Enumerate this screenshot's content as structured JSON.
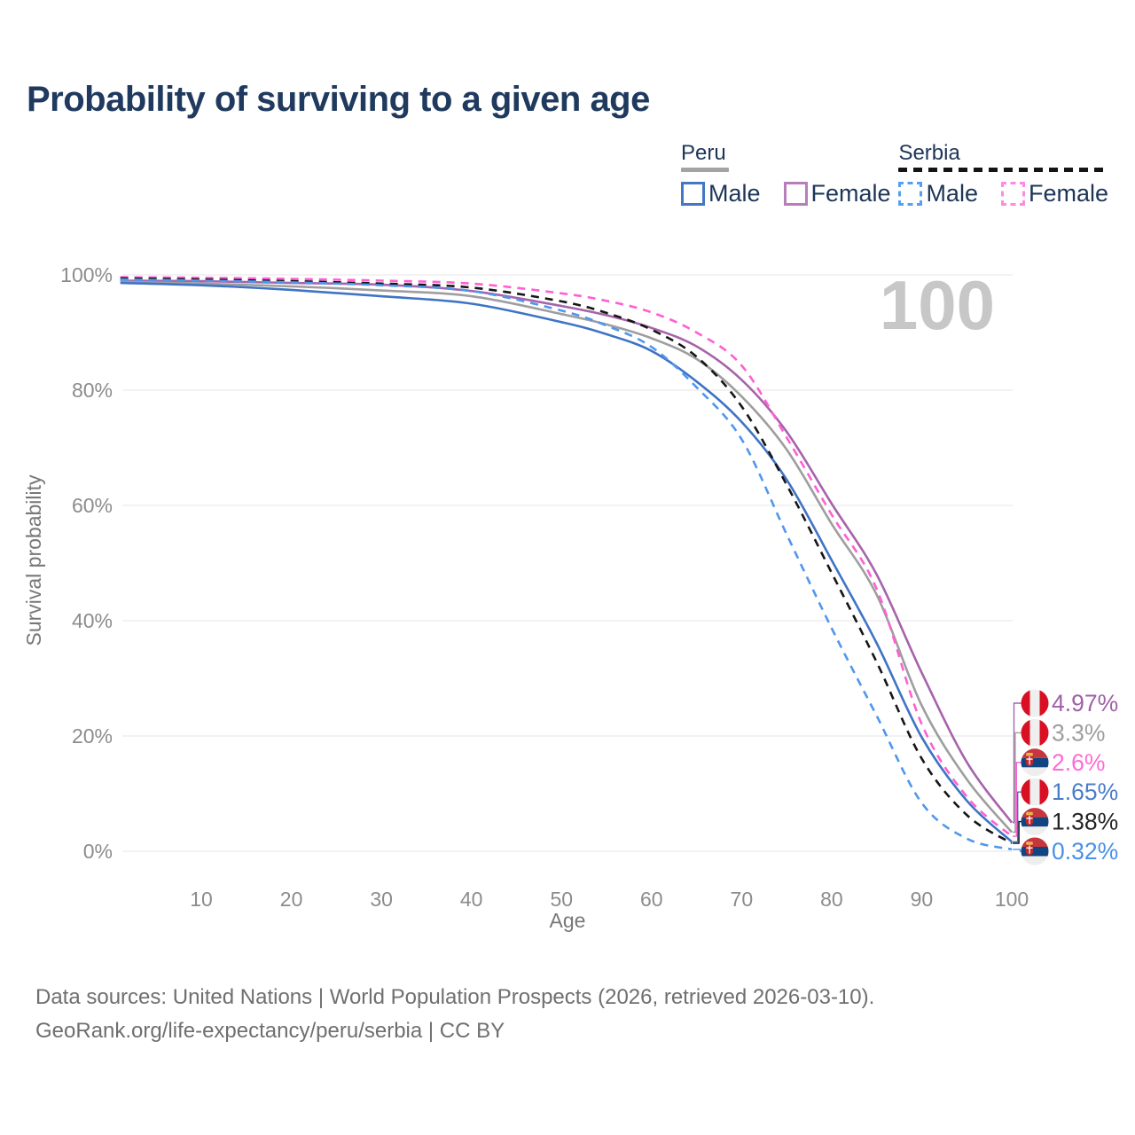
{
  "header": {
    "title": "Probability of surviving to a given age"
  },
  "legend": {
    "groups": [
      {
        "label": "Peru",
        "line_style": "solid",
        "line_color": "#a3a3a3",
        "items": [
          {
            "label": "Male",
            "color": "#4478c4",
            "dashed": false
          },
          {
            "label": "Female",
            "color": "#b87eba",
            "dashed": false
          }
        ]
      },
      {
        "label": "Serbia",
        "line_style": "dashed",
        "line_color": "#141414",
        "items": [
          {
            "label": "Male",
            "color": "#57a0f0",
            "dashed": true
          },
          {
            "label": "Female",
            "color": "#ff8ae2",
            "dashed": true
          }
        ]
      }
    ]
  },
  "chart_data": {
    "type": "line",
    "title": "Probability of surviving to a given age",
    "xlabel": "Age",
    "ylabel": "Survival probability",
    "xlim": [
      0,
      100
    ],
    "ylim": [
      0,
      100
    ],
    "grid": "horizontal",
    "watermark": "100",
    "x_ticks": [
      10,
      20,
      30,
      40,
      50,
      60,
      70,
      80,
      90,
      100
    ],
    "y_ticks": [
      {
        "value": 0,
        "label": "0%"
      },
      {
        "value": 20,
        "label": "20%"
      },
      {
        "value": 40,
        "label": "40%"
      },
      {
        "value": 60,
        "label": "60%"
      },
      {
        "value": 80,
        "label": "80%"
      },
      {
        "value": 100,
        "label": "100%"
      }
    ],
    "ages": [
      1,
      10,
      20,
      30,
      40,
      50,
      55,
      60,
      65,
      70,
      75,
      80,
      85,
      90,
      95,
      100
    ],
    "series": [
      {
        "name": "Peru Female",
        "country": "Peru",
        "sex": "Female",
        "flag": "peru",
        "color": "#a763ab",
        "label_color": "#a05fa8",
        "dashed": false,
        "end_label": "4.97%",
        "values": [
          99.0,
          98.9,
          98.6,
          98.3,
          97.2,
          94.6,
          93.0,
          90.8,
          87.6,
          81.8,
          72.8,
          60.3,
          48.0,
          31.0,
          15.5,
          4.97
        ]
      },
      {
        "name": "Peru",
        "country": "Peru",
        "sex": "Both",
        "flag": "peru",
        "color": "#9e9e9e",
        "label_color": "#9e9e9e",
        "dashed": false,
        "end_label": "3.3%",
        "values": [
          98.8,
          98.5,
          98.0,
          97.3,
          96.3,
          93.2,
          91.4,
          89.0,
          85.4,
          78.9,
          69.7,
          56.8,
          44.5,
          25.3,
          12.5,
          3.3
        ]
      },
      {
        "name": "Serbia Female",
        "country": "Serbia",
        "sex": "Female",
        "flag": "serbia",
        "color": "#ff5fd3",
        "label_color": "#ff6ad6",
        "dashed": true,
        "end_label": "2.6%",
        "values": [
          99.6,
          99.5,
          99.3,
          99.0,
          98.5,
          96.8,
          95.5,
          93.5,
          90.0,
          84.3,
          71.8,
          58.4,
          45.5,
          22.1,
          9.5,
          2.6
        ]
      },
      {
        "name": "Peru Male",
        "country": "Peru",
        "sex": "Male",
        "flag": "peru",
        "color": "#3f74c5",
        "label_color": "#4a7dc9",
        "dashed": false,
        "end_label": "1.65%",
        "values": [
          98.6,
          98.2,
          97.4,
          96.3,
          95.0,
          91.8,
          89.7,
          86.8,
          81.5,
          74.5,
          64.5,
          50.5,
          36.1,
          19.8,
          8.8,
          1.65
        ]
      },
      {
        "name": "Serbia",
        "country": "Serbia",
        "sex": "Both",
        "flag": "serbia",
        "color": "#161616",
        "label_color": "#242424",
        "dashed": true,
        "end_label": "1.38%",
        "values": [
          99.4,
          99.2,
          98.9,
          98.5,
          97.8,
          95.4,
          93.4,
          90.5,
          85.8,
          77.2,
          63.6,
          48.3,
          32.8,
          16.1,
          6.3,
          1.38
        ]
      },
      {
        "name": "Serbia Male",
        "country": "Serbia",
        "sex": "Male",
        "flag": "serbia",
        "color": "#4f97ee",
        "label_color": "#4a90e8",
        "dashed": true,
        "end_label": "0.32%",
        "values": [
          99.2,
          99.0,
          98.7,
          98.2,
          97.2,
          93.8,
          91.2,
          87.5,
          80.5,
          71.5,
          55.0,
          38.7,
          23.5,
          8.4,
          2.2,
          0.32
        ]
      }
    ]
  },
  "footer": {
    "line1": "Data sources: United Nations | World Population Prospects (2026, retrieved 2026-03-10).",
    "line2": "GeoRank.org/life-expectancy/peru/serbia | CC BY"
  }
}
